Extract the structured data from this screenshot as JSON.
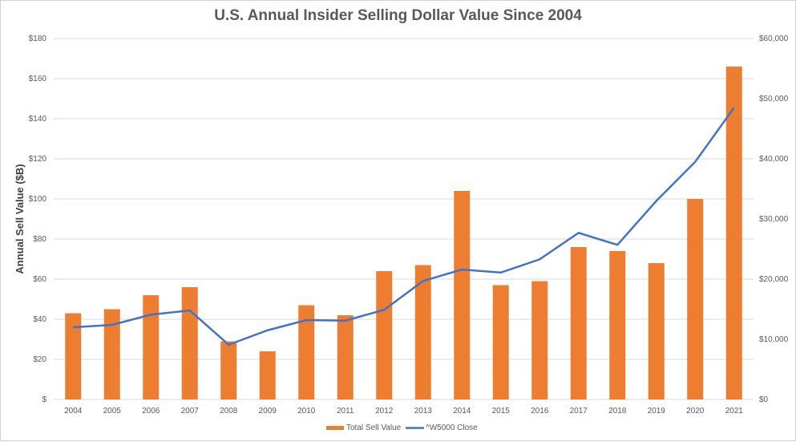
{
  "chart_data": {
    "type": "bar",
    "title": "U.S. Annual Insider Selling Dollar Value Since 2004",
    "ylabel": "Annual Sell Value ($B)",
    "y2label": "",
    "ylim": [
      0,
      180
    ],
    "y2lim": [
      0,
      60000
    ],
    "yticks": [
      "$",
      "$20",
      "$40",
      "$60",
      "$80",
      "$100",
      "$120",
      "$140",
      "$160",
      "$180"
    ],
    "y2ticks": [
      "$0",
      "$10,000",
      "$20,000",
      "$30,000",
      "$40,000",
      "$50,000",
      "$60,000"
    ],
    "categories": [
      "2004",
      "2005",
      "2006",
      "2007",
      "2008",
      "2009",
      "2010",
      "2011",
      "2012",
      "2013",
      "2014",
      "2015",
      "2016",
      "2017",
      "2018",
      "2019",
      "2020",
      "2021"
    ],
    "grid": true,
    "legend_placement": "bottom",
    "series": [
      {
        "name": "Total Sell Value",
        "type": "bar",
        "axis": "left",
        "color": "#ED7D31",
        "values": [
          43,
          45,
          52,
          56,
          29,
          24,
          47,
          42,
          64,
          67,
          104,
          57,
          59,
          76,
          74,
          68,
          100,
          166
        ]
      },
      {
        "name": "^W5000 Close",
        "type": "line",
        "axis": "right",
        "color": "#4472C4",
        "values": [
          12000,
          12400,
          14100,
          14800,
          9100,
          11500,
          13200,
          13100,
          14900,
          19700,
          21600,
          21100,
          23300,
          27700,
          25700,
          33000,
          39500,
          48500
        ]
      }
    ]
  }
}
